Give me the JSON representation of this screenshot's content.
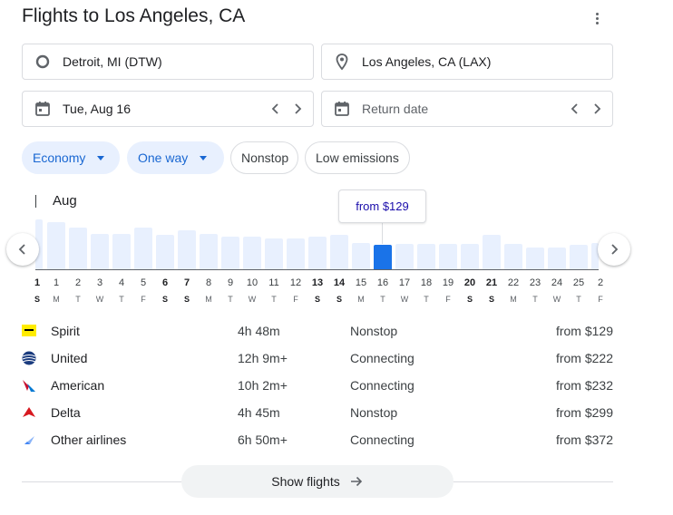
{
  "page": {
    "title": "Flights to Los Angeles, CA"
  },
  "search": {
    "origin": "Detroit, MI (DTW)",
    "destination": "Los Angeles, CA (LAX)",
    "depart_date": "Tue, Aug 16",
    "return_placeholder": "Return date"
  },
  "filters": {
    "cabin": "Economy",
    "trip_type": "One way",
    "nonstop": "Nonstop",
    "emissions": "Low emissions"
  },
  "price_graph": {
    "month": "Aug",
    "tooltip": "from $129",
    "selected_day": "16",
    "days": [
      {
        "num": "1",
        "wd": "M",
        "weekend": false,
        "level": 0.86
      },
      {
        "num": "2",
        "wd": "T",
        "weekend": false,
        "level": 0.76
      },
      {
        "num": "3",
        "wd": "W",
        "weekend": false,
        "level": 0.65
      },
      {
        "num": "4",
        "wd": "T",
        "weekend": false,
        "level": 0.65
      },
      {
        "num": "5",
        "wd": "F",
        "weekend": false,
        "level": 0.76
      },
      {
        "num": "6",
        "wd": "S",
        "weekend": true,
        "level": 0.63
      },
      {
        "num": "7",
        "wd": "S",
        "weekend": true,
        "level": 0.71
      },
      {
        "num": "8",
        "wd": "M",
        "weekend": false,
        "level": 0.65
      },
      {
        "num": "9",
        "wd": "T",
        "weekend": false,
        "level": 0.6
      },
      {
        "num": "10",
        "wd": "W",
        "weekend": false,
        "level": 0.6
      },
      {
        "num": "11",
        "wd": "T",
        "weekend": false,
        "level": 0.57
      },
      {
        "num": "12",
        "wd": "F",
        "weekend": false,
        "level": 0.56
      },
      {
        "num": "13",
        "wd": "S",
        "weekend": true,
        "level": 0.6
      },
      {
        "num": "14",
        "wd": "S",
        "weekend": true,
        "level": 0.63
      },
      {
        "num": "15",
        "wd": "M",
        "weekend": false,
        "level": 0.48
      },
      {
        "num": "16",
        "wd": "T",
        "weekend": false,
        "level": 0.45
      },
      {
        "num": "17",
        "wd": "W",
        "weekend": false,
        "level": 0.46
      },
      {
        "num": "18",
        "wd": "T",
        "weekend": false,
        "level": 0.46
      },
      {
        "num": "19",
        "wd": "F",
        "weekend": false,
        "level": 0.46
      },
      {
        "num": "20",
        "wd": "S",
        "weekend": true,
        "level": 0.46
      },
      {
        "num": "21",
        "wd": "S",
        "weekend": true,
        "level": 0.63
      },
      {
        "num": "22",
        "wd": "M",
        "weekend": false,
        "level": 0.46
      },
      {
        "num": "23",
        "wd": "T",
        "weekend": false,
        "level": 0.41
      },
      {
        "num": "24",
        "wd": "W",
        "weekend": false,
        "level": 0.41
      },
      {
        "num": "25",
        "wd": "T",
        "weekend": false,
        "level": 0.45
      }
    ],
    "prev_edge": {
      "num": "1",
      "wd": "S",
      "level": 0.9
    },
    "next_edge": {
      "num": "2",
      "wd": "F",
      "level": 0.48
    }
  },
  "airlines": [
    {
      "name": "Spirit",
      "duration": "4h 48m",
      "stops": "Nonstop",
      "price": "from $129",
      "logo": "spirit-logo-icon",
      "color": "#ffec00"
    },
    {
      "name": "United",
      "duration": "12h 9m+",
      "stops": "Connecting",
      "price": "from $222",
      "logo": "united-logo-icon",
      "color": "#1a3b7e"
    },
    {
      "name": "American",
      "duration": "10h 2m+",
      "stops": "Connecting",
      "price": "from $232",
      "logo": "american-logo-icon",
      "color": "#c8102e"
    },
    {
      "name": "Delta",
      "duration": "4h 45m",
      "stops": "Nonstop",
      "price": "from $299",
      "logo": "delta-logo-icon",
      "color": "#d71920"
    },
    {
      "name": "Other airlines",
      "duration": "6h 50m+",
      "stops": "Connecting",
      "price": "from $372",
      "logo": "plane-icon",
      "color": "#8ab4f8"
    }
  ],
  "actions": {
    "show_flights": "Show flights"
  },
  "colors": {
    "accent": "#1a73e8",
    "bar_default": "#e8f0fe",
    "chip_bg": "#e8f0fe",
    "chip_text": "#1967d2",
    "tooltip_text": "#1a0dab"
  }
}
